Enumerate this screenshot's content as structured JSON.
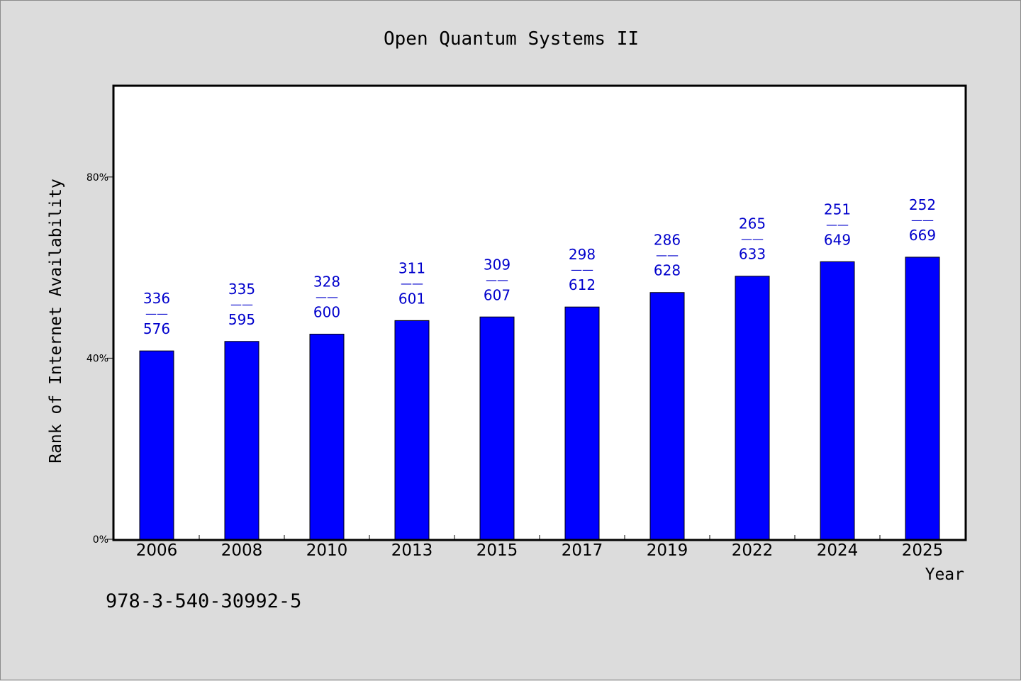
{
  "chart_data": {
    "type": "bar",
    "title": "Open Quantum Systems II",
    "xlabel": "Year",
    "ylabel": "Rank of Internet Availability",
    "ylim": [
      0,
      100
    ],
    "yticks": [
      {
        "value": 0,
        "label": "0%"
      },
      {
        "value": 40,
        "label": "40%"
      },
      {
        "value": 80,
        "label": "80%"
      }
    ],
    "categories": [
      "2006",
      "2008",
      "2010",
      "2013",
      "2015",
      "2017",
      "2019",
      "2022",
      "2024",
      "2025"
    ],
    "values": [
      41.6,
      43.7,
      45.3,
      48.3,
      49.1,
      51.3,
      54.5,
      58.1,
      61.3,
      62.3
    ],
    "labels": [
      {
        "top": "336",
        "sep": "——",
        "bottom": "576"
      },
      {
        "top": "335",
        "sep": "——",
        "bottom": "595"
      },
      {
        "top": "328",
        "sep": "——",
        "bottom": "600"
      },
      {
        "top": "311",
        "sep": "——",
        "bottom": "601"
      },
      {
        "top": "309",
        "sep": "——",
        "bottom": "607"
      },
      {
        "top": "298",
        "sep": "——",
        "bottom": "612"
      },
      {
        "top": "286",
        "sep": "——",
        "bottom": "628"
      },
      {
        "top": "265",
        "sep": "——",
        "bottom": "633"
      },
      {
        "top": "251",
        "sep": "——",
        "bottom": "649"
      },
      {
        "top": "252",
        "sep": "——",
        "bottom": "669"
      }
    ],
    "bar_color": "#0000ff",
    "label_color": "#0000cc",
    "grid": false
  },
  "footer": {
    "isbn": "978-3-540-30992-5"
  }
}
